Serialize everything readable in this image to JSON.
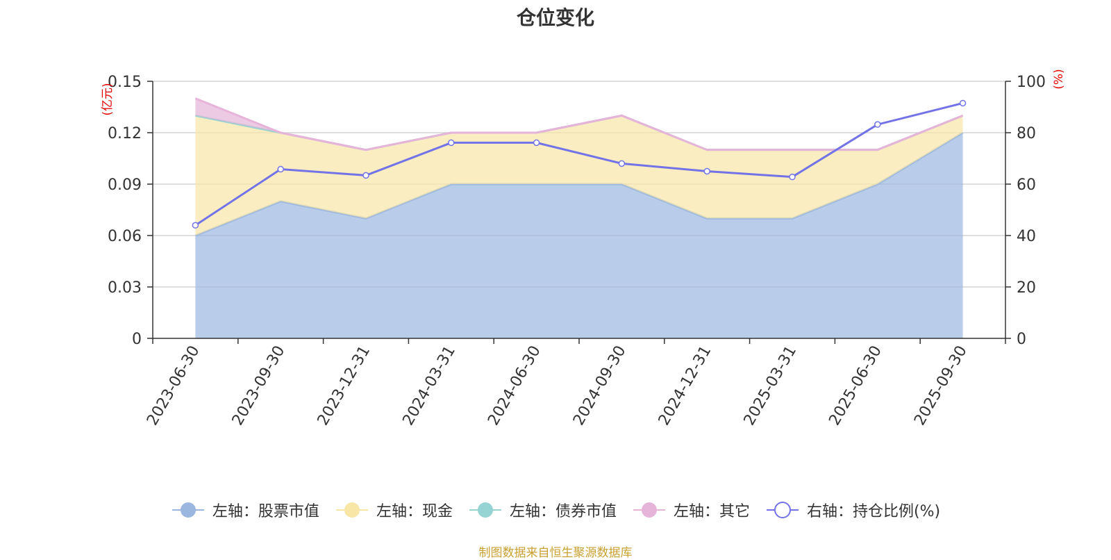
{
  "chart_data": {
    "type": "area",
    "title": "仓位变化",
    "x": [
      "2023-06-30",
      "2023-09-30",
      "2023-12-31",
      "2024-03-31",
      "2024-06-30",
      "2024-09-30",
      "2024-12-31",
      "2025-03-31",
      "2025-06-30",
      "2025-09-30"
    ],
    "left_axis": {
      "unit_label": "(亿元)",
      "ylim": [
        0,
        0.15
      ],
      "ticks": [
        "0",
        "0.03",
        "0.06",
        "0.09",
        "0.12",
        "0.15"
      ]
    },
    "right_axis": {
      "unit_label": "(%)",
      "ylim": [
        0,
        100
      ],
      "ticks": [
        "0",
        "20",
        "40",
        "60",
        "80",
        "100"
      ]
    },
    "stacked_series": [
      {
        "name": "左轴：股票市值",
        "color": "#9bb7e0",
        "values": [
          0.06,
          0.08,
          0.07,
          0.09,
          0.09,
          0.09,
          0.07,
          0.07,
          0.09,
          0.12
        ]
      },
      {
        "name": "左轴：现金",
        "color": "#f7e6a6",
        "values": [
          0.07,
          0.04,
          0.04,
          0.03,
          0.03,
          0.04,
          0.04,
          0.04,
          0.02,
          0.01
        ]
      },
      {
        "name": "左轴：债券市值",
        "color": "#96d3d3",
        "values": [
          0,
          0,
          0,
          0,
          0,
          0,
          0,
          0,
          0,
          0
        ]
      },
      {
        "name": "左轴：其它",
        "color": "#e6b4d9",
        "values": [
          0.01,
          0,
          0,
          0,
          0,
          0,
          0,
          0,
          0,
          0
        ]
      }
    ],
    "line_series": {
      "name": "右轴：持仓比例(%)",
      "color": "#7373e8",
      "axis": "right",
      "values": [
        44.0,
        65.8,
        63.4,
        76.1,
        76.1,
        68.0,
        65.0,
        62.8,
        83.2,
        91.5
      ]
    },
    "grid": true,
    "legend_position": "bottom"
  },
  "source_note": "制图数据来自恒生聚源数据库"
}
